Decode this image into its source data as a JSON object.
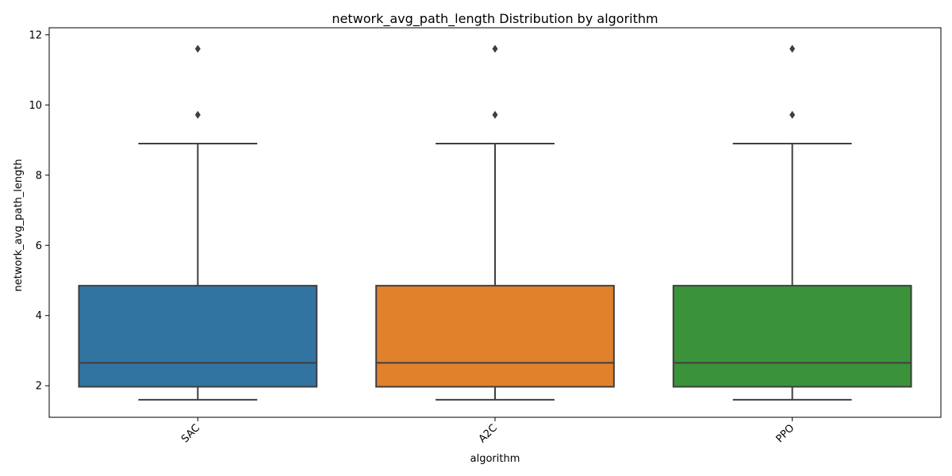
{
  "chart_data": {
    "type": "box",
    "title": "network_avg_path_length Distribution by algorithm",
    "xlabel": "algorithm",
    "ylabel": "network_avg_path_length",
    "ylim": [
      1.1,
      12.2
    ],
    "yticks": [
      2,
      4,
      6,
      8,
      10,
      12
    ],
    "grid": false,
    "categories": [
      "SAC",
      "A2C",
      "PPO"
    ],
    "colors": [
      "#3274a1",
      "#e1812c",
      "#3a923a"
    ],
    "series": [
      {
        "category": "SAC",
        "whisker_low": 1.6,
        "q1": 1.97,
        "median": 2.65,
        "q3": 4.85,
        "whisker_high": 8.9,
        "outliers": [
          9.72,
          11.6
        ]
      },
      {
        "category": "A2C",
        "whisker_low": 1.6,
        "q1": 1.97,
        "median": 2.65,
        "q3": 4.85,
        "whisker_high": 8.9,
        "outliers": [
          9.72,
          11.6
        ]
      },
      {
        "category": "PPO",
        "whisker_low": 1.6,
        "q1": 1.97,
        "median": 2.65,
        "q3": 4.85,
        "whisker_high": 8.9,
        "outliers": [
          9.72,
          11.6
        ]
      }
    ]
  }
}
